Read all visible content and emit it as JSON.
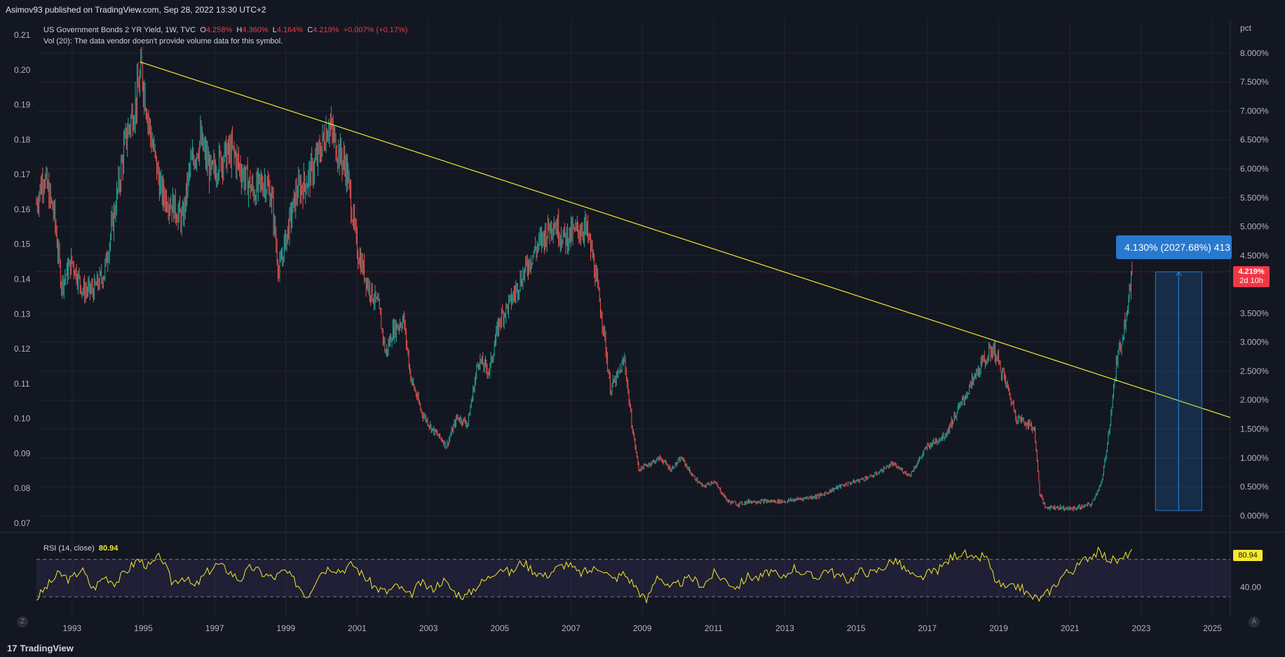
{
  "header": {
    "publish_text": "Asimov93 published on TradingView.com, Sep 28, 2022 13:30 UTC+2"
  },
  "legend": {
    "symbol": "US Government Bonds 2 YR Yield, 1W, TVC",
    "o_label": "O",
    "o_value": "4.258%",
    "h_label": "H",
    "h_value": "4.360%",
    "l_label": "L",
    "l_value": "4.164%",
    "c_label": "C",
    "c_value": "4.219%",
    "change": "+0.007% (+0.17%)",
    "vol_text": "Vol (20): The data vendor doesn't provide volume data for this symbol."
  },
  "rsi": {
    "label": "RSI (14, close)",
    "value": "80.94",
    "axis_label": "40.00",
    "badge": "80.94"
  },
  "price_badge": {
    "value": "4.219%",
    "countdown": "2d 10h"
  },
  "measure_label": "4.130% (2027.68%) 413",
  "footer": {
    "brand": "TradingView",
    "z_button": "Z",
    "a_button": "A"
  },
  "colors": {
    "background": "#131722",
    "up": "#26a69a",
    "down": "#ef5350",
    "trendline": "#f7e92c",
    "rsi_line": "#f7e92c",
    "measure": "#2879cf",
    "price_line": "#f23645"
  },
  "chart_data": {
    "type": "line",
    "title": "US Government Bonds 2 YR Yield, 1W, TVC",
    "x_axis": {
      "ticks": [
        "1993",
        "1995",
        "1997",
        "1999",
        "2001",
        "2003",
        "2005",
        "2007",
        "2009",
        "2011",
        "2013",
        "2015",
        "2017",
        "2019",
        "2021",
        "2023",
        "2025"
      ],
      "range": [
        1992,
        2025.5
      ]
    },
    "y_axis_right": {
      "unit": "pct",
      "ticks": [
        "8.000%",
        "7.500%",
        "7.000%",
        "6.500%",
        "6.000%",
        "5.500%",
        "5.000%",
        "4.500%",
        "3.500%",
        "3.000%",
        "2.500%",
        "2.000%",
        "1.500%",
        "1.000%",
        "0.500%",
        "0.000%"
      ],
      "range": [
        -0.25,
        8.35
      ]
    },
    "y_axis_left": {
      "ticks": [
        "0.21",
        "0.20",
        "0.19",
        "0.18",
        "0.17",
        "0.16",
        "0.15",
        "0.14",
        "0.13",
        "0.12",
        "0.11",
        "0.10",
        "0.09",
        "0.08",
        "0.07"
      ]
    },
    "series": [
      {
        "name": "US Government Bonds 2 YR Yield",
        "x": [
          1992.0,
          1992.2,
          1992.5,
          1992.7,
          1993.0,
          1993.3,
          1993.6,
          1993.9,
          1994.2,
          1994.5,
          1994.8,
          1994.95,
          1995.2,
          1995.5,
          1995.8,
          1996.1,
          1996.3,
          1996.6,
          1996.9,
          1997.2,
          1997.5,
          1997.8,
          1998.1,
          1998.4,
          1998.6,
          1998.8,
          1999.0,
          1999.3,
          1999.6,
          1999.9,
          2000.2,
          2000.4,
          2000.7,
          2001.0,
          2001.3,
          2001.6,
          2001.8,
          2002.0,
          2002.3,
          2002.5,
          2002.8,
          2003.1,
          2003.4,
          2003.5,
          2003.8,
          2004.1,
          2004.4,
          2004.7,
          2005.0,
          2005.3,
          2005.6,
          2005.9,
          2006.2,
          2006.5,
          2006.8,
          2007.1,
          2007.4,
          2007.6,
          2007.9,
          2008.1,
          2008.3,
          2008.5,
          2008.7,
          2008.9,
          2009.2,
          2009.5,
          2009.8,
          2010.1,
          2010.4,
          2010.7,
          2011.0,
          2011.4,
          2011.7,
          2012.0,
          2012.5,
          2013.0,
          2013.5,
          2014.0,
          2014.5,
          2015.0,
          2015.5,
          2016.0,
          2016.5,
          2017.0,
          2017.5,
          2018.0,
          2018.5,
          2018.85,
          2019.2,
          2019.5,
          2019.8,
          2020.0,
          2020.15,
          2020.3,
          2020.6,
          2021.0,
          2021.3,
          2021.6,
          2021.9,
          2022.1,
          2022.3,
          2022.5,
          2022.74
        ],
        "y": [
          5.4,
          5.9,
          5.2,
          4.0,
          4.4,
          3.9,
          3.9,
          4.2,
          5.3,
          6.5,
          7.2,
          7.7,
          6.6,
          5.6,
          5.4,
          5.1,
          6.0,
          6.5,
          5.9,
          6.2,
          6.3,
          5.9,
          5.6,
          5.8,
          5.5,
          4.2,
          4.8,
          5.6,
          5.8,
          6.2,
          6.8,
          6.4,
          6.0,
          4.6,
          4.0,
          3.6,
          2.8,
          3.2,
          3.4,
          2.4,
          1.8,
          1.5,
          1.3,
          1.2,
          1.7,
          1.6,
          2.7,
          2.5,
          3.4,
          3.7,
          4.1,
          4.5,
          4.8,
          5.1,
          4.8,
          4.9,
          5.0,
          4.5,
          3.3,
          2.2,
          2.4,
          2.7,
          1.6,
          0.8,
          0.9,
          1.0,
          0.8,
          1.0,
          0.7,
          0.5,
          0.6,
          0.25,
          0.2,
          0.25,
          0.25,
          0.25,
          0.3,
          0.35,
          0.5,
          0.6,
          0.7,
          0.9,
          0.7,
          1.2,
          1.4,
          2.0,
          2.6,
          2.9,
          2.3,
          1.7,
          1.6,
          1.5,
          0.4,
          0.15,
          0.15,
          0.12,
          0.15,
          0.2,
          0.6,
          1.5,
          2.6,
          3.2,
          4.219
        ]
      }
    ],
    "trendline": {
      "from": [
        1994.9,
        7.85
      ],
      "to": [
        2025.5,
        1.7
      ]
    },
    "measure": {
      "x_from": 2023.4,
      "x_to": 2024.7,
      "y_from": 0.09,
      "y_to": 4.219
    },
    "rsi": {
      "upper": 70,
      "lower": 30,
      "last": 80.94,
      "values": [
        28,
        42,
        55,
        48,
        60,
        38,
        52,
        45,
        58,
        70,
        62,
        74,
        45,
        52,
        40,
        55,
        65,
        58,
        48,
        62,
        55,
        50,
        58,
        45,
        30,
        55,
        62,
        58,
        65,
        52,
        40,
        35,
        42,
        30,
        45,
        38,
        48,
        35,
        30,
        42,
        50,
        62,
        55,
        68,
        58,
        52,
        60,
        66,
        55,
        58,
        62,
        48,
        55,
        42,
        25,
        55,
        38,
        45,
        50,
        42,
        55,
        48,
        40,
        52,
        50,
        58,
        48,
        62,
        55,
        50,
        60,
        52,
        48,
        58,
        55,
        62,
        70,
        58,
        48,
        55,
        60,
        72,
        78,
        68,
        75,
        45,
        38,
        42,
        30,
        28,
        40,
        55,
        60,
        72,
        78,
        70,
        68,
        80.94
      ]
    },
    "legend_position": "top-left",
    "grid": true
  }
}
